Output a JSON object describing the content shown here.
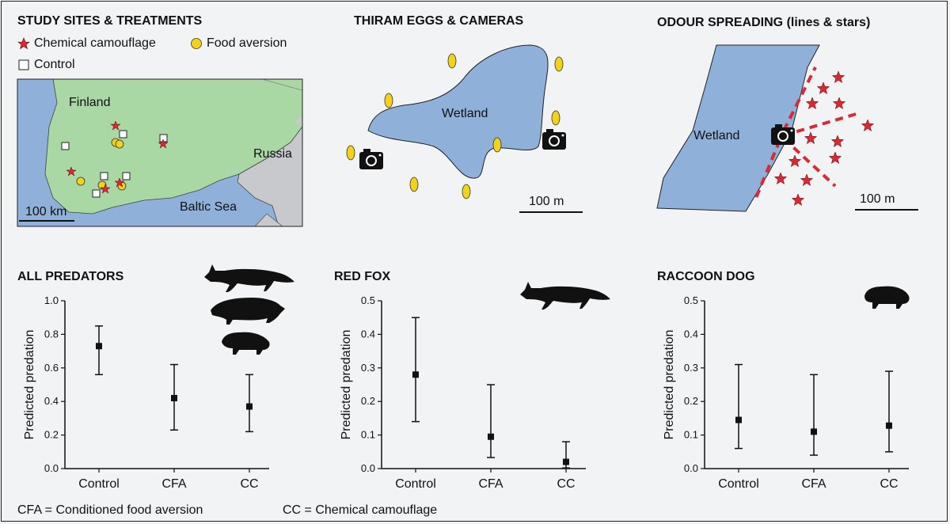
{
  "panels": {
    "sites": {
      "title": "STUDY SITES & TREATMENTS",
      "legend": [
        {
          "label": "Chemical camouflage",
          "icon": "red-star-icon",
          "color": "#d62a35"
        },
        {
          "label": "Food aversion",
          "icon": "yellow-circle-icon",
          "color": "#f2d21b"
        },
        {
          "label": "Control",
          "icon": "white-square-icon",
          "color": "#ffffff"
        }
      ],
      "map_labels": {
        "finland": "Finland",
        "russia": "Russia",
        "sea": "Baltic Sea",
        "scale": "100 km"
      }
    },
    "eggs": {
      "title": "THIRAM EGGS & CAMERAS",
      "wetland": "Wetland",
      "scale": "100 m"
    },
    "odour": {
      "title": "ODOUR SPREADING (lines & stars)",
      "wetland": "Wetland",
      "scale": "100 m"
    }
  },
  "chart_data": [
    {
      "type": "scatter",
      "title": "ALL PREDATORS",
      "ylabel": "Predicted predation",
      "categories": [
        "Control",
        "CFA",
        "CC"
      ],
      "values": [
        0.73,
        0.42,
        0.37
      ],
      "lower": [
        0.56,
        0.23,
        0.22
      ],
      "upper": [
        0.85,
        0.62,
        0.56
      ],
      "ylim": [
        0,
        1.0
      ],
      "yticks": [
        "0.0",
        "0.2",
        "0.4",
        "0.6",
        "0.8",
        "1.0"
      ]
    },
    {
      "type": "scatter",
      "title": "RED FOX",
      "ylabel": "Predicted predation",
      "categories": [
        "Control",
        "CFA",
        "CC"
      ],
      "values": [
        0.28,
        0.095,
        0.02
      ],
      "lower": [
        0.14,
        0.033,
        0.002
      ],
      "upper": [
        0.45,
        0.25,
        0.08
      ],
      "ylim": [
        0,
        0.5
      ],
      "yticks": [
        "0.0",
        "0.1",
        "0.2",
        "0.3",
        "0.4",
        "0.5"
      ]
    },
    {
      "type": "scatter",
      "title": "RACCOON DOG",
      "ylabel": "Predicted predation",
      "categories": [
        "Control",
        "CFA",
        "CC"
      ],
      "values": [
        0.145,
        0.11,
        0.128
      ],
      "lower": [
        0.06,
        0.04,
        0.05
      ],
      "upper": [
        0.31,
        0.28,
        0.29
      ],
      "ylim": [
        0,
        0.5
      ],
      "yticks": [
        "0.0",
        "0.1",
        "0.2",
        "0.3",
        "0.4",
        "0.5"
      ]
    }
  ],
  "footnotes": {
    "cfa": "CFA = Conditioned food aversion",
    "cc": "CC = Chemical camouflage"
  }
}
